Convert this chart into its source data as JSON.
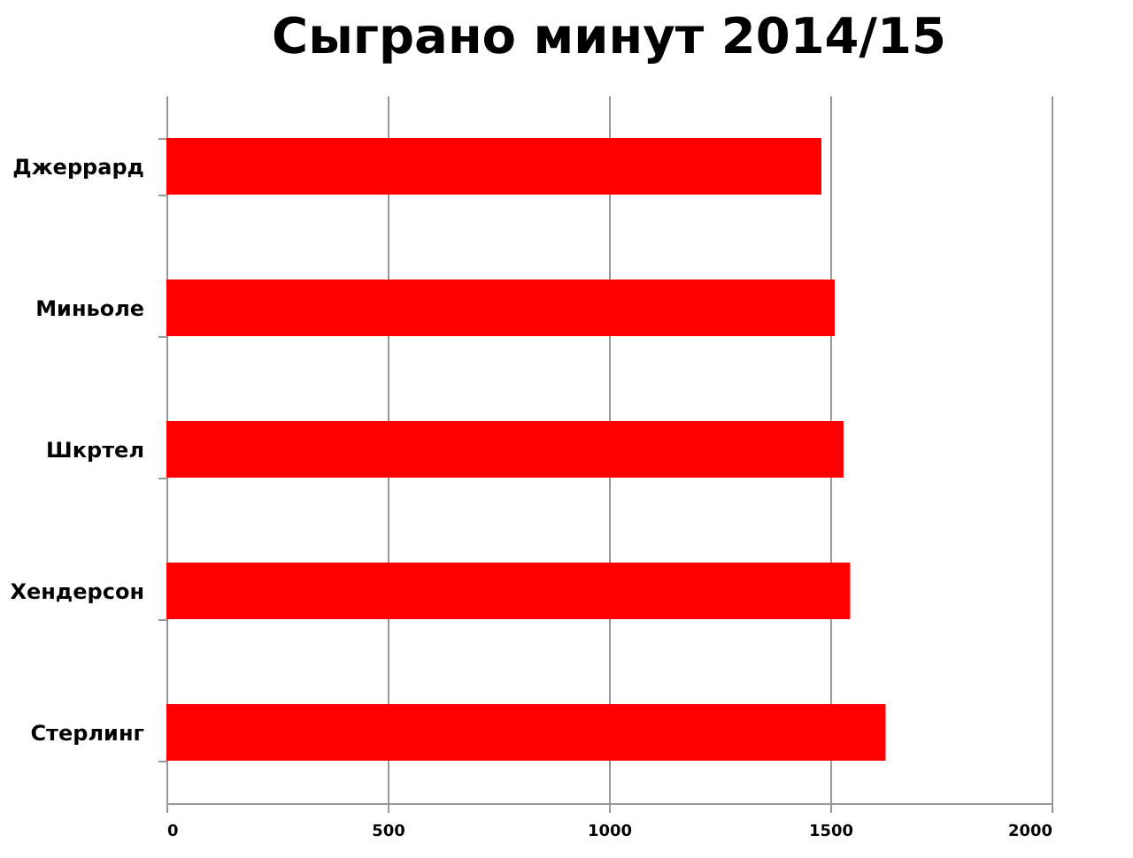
{
  "chart_data": {
    "type": "bar",
    "orientation": "horizontal",
    "title": "Сыграно минут 2014/15",
    "categories": [
      "Джеррард",
      "Миньоле",
      "Шкртел",
      "Хендерсон",
      "Стерлинг"
    ],
    "values": [
      1480,
      1510,
      1530,
      1545,
      1625
    ],
    "color": "#ff0000",
    "xlim": [
      0,
      2000
    ],
    "xticks": [
      0,
      500,
      1000,
      1500,
      2000
    ],
    "grid": "x"
  }
}
